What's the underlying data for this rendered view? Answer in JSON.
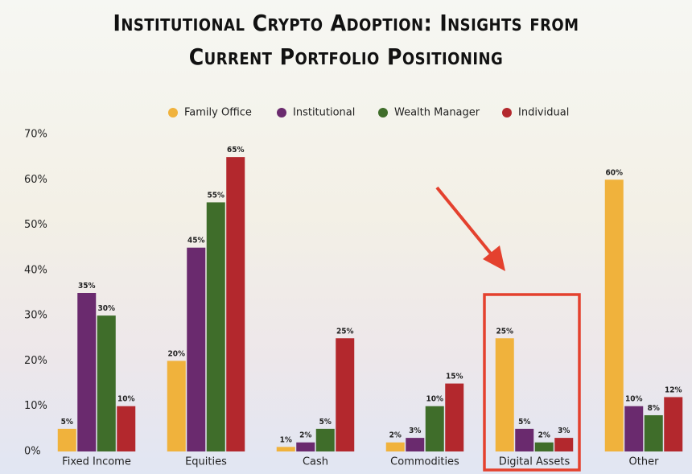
{
  "chart_data": {
    "type": "bar",
    "title": "Institutional Crypto Adoption: Insights from Current Portfolio Positioning",
    "categories": [
      "Fixed Income",
      "Equities",
      "Cash",
      "Commodities",
      "Digital Assets",
      "Other"
    ],
    "series": [
      {
        "name": "Family Office",
        "color": "#f0b23c",
        "values": [
          5,
          20,
          1,
          2,
          25,
          60
        ],
        "value_labels": [
          "5%",
          "20%",
          "1%",
          "2%",
          "25%",
          "60%"
        ]
      },
      {
        "name": "Institutional",
        "color": "#6a2a6e",
        "values": [
          35,
          45,
          2,
          3,
          5,
          10
        ],
        "value_labels": [
          "35%",
          "45%",
          "2%",
          "3%",
          "5%",
          "10%"
        ]
      },
      {
        "name": "Wealth Manager",
        "color": "#3f6d2a",
        "values": [
          30,
          55,
          5,
          10,
          2,
          8
        ],
        "value_labels": [
          "30%",
          "55%",
          "5%",
          "10%",
          "2%",
          "8%"
        ]
      },
      {
        "name": "Individual",
        "color": "#b3282d",
        "values": [
          10,
          65,
          25,
          15,
          3,
          12
        ],
        "value_labels": [
          "10%",
          "65%",
          "25%",
          "15%",
          "3%",
          "12%"
        ]
      }
    ],
    "ylim": [
      0,
      70
    ],
    "yticks": [
      {
        "value": 0,
        "label": "0%"
      },
      {
        "value": 10,
        "label": "10%"
      },
      {
        "value": 20,
        "label": "20%"
      },
      {
        "value": 30,
        "label": "30%"
      },
      {
        "value": 40,
        "label": "40%"
      },
      {
        "value": 50,
        "label": "50%"
      },
      {
        "value": 60,
        "label": "60%"
      },
      {
        "value": 70,
        "label": "70%"
      }
    ],
    "grid": false,
    "legend": "top"
  }
}
